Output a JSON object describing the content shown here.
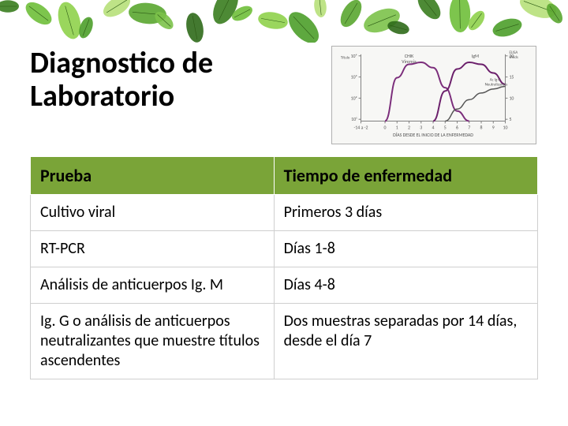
{
  "title_line1": "Diagnostico de",
  "title_line2": "Laboratorio",
  "leaf_colors": [
    "#3a7d1f",
    "#6fbf3a",
    "#8fd14b",
    "#4c9e2a",
    "#b7e07a",
    "#5aa630",
    "#7cc24a",
    "#2f6a1a"
  ],
  "header_bg": "#7aa438",
  "table": {
    "columns": [
      "Prueba",
      "Tiempo de enfermedad"
    ],
    "rows": [
      [
        "Cultivo viral",
        "Primeros 3 días"
      ],
      [
        "RT-PCR",
        "Días 1-8"
      ],
      [
        "Análisis de anticuerpos Ig. M",
        "Días 4-8"
      ],
      [
        "Ig. G o análisis de anticuerpos neutralizantes que muestre títulos ascendentes",
        "Dos muestras separadas por 14 días, desde el día 7"
      ]
    ]
  },
  "chart": {
    "type": "line",
    "background": "#f7f7f5",
    "axis_color": "#808080",
    "tick_fontsize": 6,
    "label_fontsize": 7,
    "x_label": "DÍAS DESDE EL INICIO DE LA ENFERMEDAD",
    "x_ticks": [
      "-14 a -2",
      "0",
      "1",
      "2",
      "3",
      "4",
      "5",
      "6",
      "7",
      "8",
      "9",
      "10"
    ],
    "left_y_label": "Título log",
    "left_y_ticks": [
      "10⁴",
      "10³",
      "10²",
      "10¹"
    ],
    "right_y_label": "ELISA Unids",
    "right_y_ticks": [
      "20",
      "15",
      "10",
      "5"
    ],
    "series": [
      {
        "name": "CHIK Viremia",
        "label": "CHIK\nViremia",
        "color": "#7b2d7b",
        "line_width": 2,
        "points": [
          [
            0,
            0
          ],
          [
            1,
            65
          ],
          [
            2,
            85
          ],
          [
            3,
            88
          ],
          [
            4,
            80
          ],
          [
            5,
            50
          ],
          [
            6,
            15
          ],
          [
            7,
            0
          ]
        ]
      },
      {
        "name": "IgM",
        "label": "IgM",
        "color": "#6b1f6b",
        "line_width": 2,
        "points": [
          [
            4,
            0
          ],
          [
            5,
            45
          ],
          [
            6,
            78
          ],
          [
            7,
            88
          ],
          [
            8,
            85
          ],
          [
            9,
            72
          ],
          [
            10,
            55
          ]
        ]
      },
      {
        "name": "Ac IgG Neutralizantes",
        "label": "Ac Ig G\nNeutralizantes",
        "color": "#555555",
        "line_width": 1.5,
        "points": [
          [
            5,
            0
          ],
          [
            6,
            18
          ],
          [
            7,
            32
          ],
          [
            8,
            42
          ],
          [
            9,
            48
          ],
          [
            10,
            52
          ]
        ]
      }
    ]
  }
}
